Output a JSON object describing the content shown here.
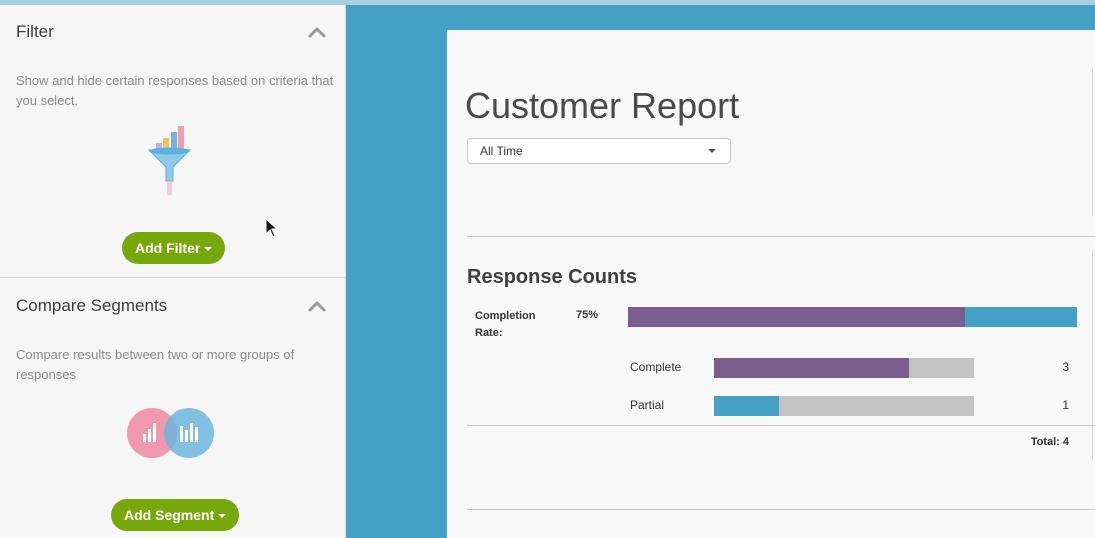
{
  "sidebar": {
    "filter": {
      "title": "Filter",
      "description": "Show and hide certain responses based on criteria that you select.",
      "button_label": "Add Filter"
    },
    "compare": {
      "title": "Compare Segments",
      "description": "Compare results between two or more groups of responses",
      "button_label": "Add Segment"
    }
  },
  "report": {
    "title": "Customer Report",
    "time_filter": "All Time",
    "section_title": "Response Counts",
    "completion": {
      "label": "Completion Rate:",
      "percent_text": "75%",
      "percent": 75
    },
    "rows": [
      {
        "label": "Complete",
        "count": "3",
        "fraction": 0.75,
        "color": "#7b5e8f"
      },
      {
        "label": "Partial",
        "count": "1",
        "fraction": 0.25,
        "color": "#44a0c4"
      }
    ],
    "total": "Total: 4"
  },
  "colors": {
    "accent_blue": "#44a0c4",
    "accent_purple": "#7b5e8f",
    "button_green": "#76a70b"
  }
}
